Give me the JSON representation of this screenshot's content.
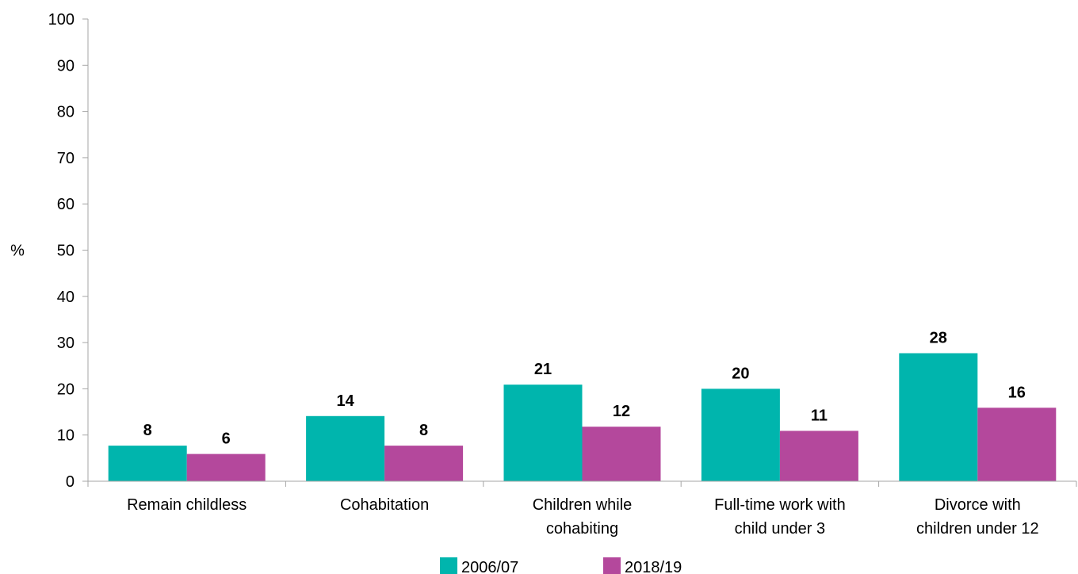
{
  "chart_data": {
    "type": "bar",
    "ylabel": "%",
    "ylim": [
      0,
      100
    ],
    "yticks": [
      "0",
      "10",
      "20",
      "30",
      "40",
      "50",
      "60",
      "70",
      "80",
      "90",
      "100"
    ],
    "categories": [
      [
        "Remain childless"
      ],
      [
        "Cohabitation"
      ],
      [
        "Children while",
        "cohabiting"
      ],
      [
        "Full-time work with",
        "child under 3"
      ],
      [
        "Divorce with",
        "children under 12"
      ]
    ],
    "series": [
      {
        "name": "2006/07",
        "color": "#00b5ad",
        "values": [
          7.7,
          14.1,
          20.9,
          20.0,
          27.7
        ],
        "labels": [
          "8",
          "14",
          "21",
          "20",
          "28"
        ]
      },
      {
        "name": "2018/19",
        "color": "#b4489c",
        "values": [
          5.9,
          7.7,
          11.8,
          10.9,
          15.9
        ],
        "labels": [
          "6",
          "8",
          "12",
          "11",
          "16"
        ]
      }
    ],
    "legend": "bottom",
    "grid": false
  }
}
